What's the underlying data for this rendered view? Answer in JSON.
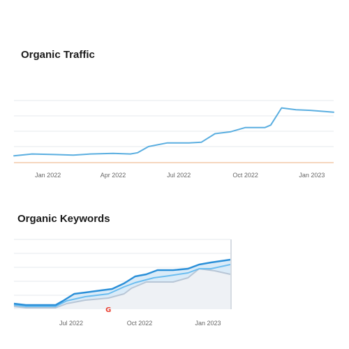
{
  "charts": {
    "traffic_title": "Organic Traffic",
    "keywords_title": "Organic Keywords"
  },
  "colors": {
    "traffic_line": "#5aaee0",
    "keywords_top": "#2a8fd8",
    "keywords_mid": "#6bbdf0",
    "keywords_low": "#b8c6d6",
    "keywords_fill": "#d3e8f7",
    "keywords_bg": "#eef1f5",
    "grid": "#e6e9ed",
    "baseline": "#f2c9a8",
    "google_icon": "#ea4335"
  },
  "icons": {
    "event_marker": "google-icon",
    "event_marker_glyph": "G"
  },
  "chart_data": [
    {
      "type": "line",
      "title": "Organic Traffic",
      "xlabel": "",
      "ylabel": "",
      "x_range": [
        "2021-11-15",
        "2023-01-31"
      ],
      "y_range": [
        0,
        100
      ],
      "grid": true,
      "legend": "none",
      "x_ticks": [
        {
          "date": "2022-01-01",
          "label": "Jan 2022"
        },
        {
          "date": "2022-04-01",
          "label": "Apr 2022"
        },
        {
          "date": "2022-07-01",
          "label": "Jul 2022"
        },
        {
          "date": "2022-10-01",
          "label": "Oct 2022"
        },
        {
          "date": "2023-01-01",
          "label": "Jan 2023"
        }
      ],
      "series": [
        {
          "points": [
            [
              "2021-11-15",
              10
            ],
            [
              "2021-12-10",
              13
            ],
            [
              "2022-01-10",
              12
            ],
            [
              "2022-02-05",
              11
            ],
            [
              "2022-03-01",
              13
            ],
            [
              "2022-04-01",
              14
            ],
            [
              "2022-04-25",
              13
            ],
            [
              "2022-05-05",
              15
            ],
            [
              "2022-05-20",
              25
            ],
            [
              "2022-06-15",
              31
            ],
            [
              "2022-07-15",
              31
            ],
            [
              "2022-08-01",
              32
            ],
            [
              "2022-08-20",
              46
            ],
            [
              "2022-09-10",
              49
            ],
            [
              "2022-10-01",
              56
            ],
            [
              "2022-10-28",
              56
            ],
            [
              "2022-11-05",
              60
            ],
            [
              "2022-11-20",
              88
            ],
            [
              "2022-12-10",
              85
            ],
            [
              "2022-12-30",
              84
            ],
            [
              "2023-01-31",
              81
            ]
          ]
        }
      ]
    },
    {
      "type": "area",
      "title": "Organic Keywords",
      "xlabel": "",
      "ylabel": "",
      "x_range": [
        "2022-04-15",
        "2023-01-31"
      ],
      "y_range": [
        0,
        100
      ],
      "grid": true,
      "legend": "none",
      "x_ticks": [
        {
          "date": "2022-07-01",
          "label": "Jul 2022"
        },
        {
          "date": "2022-10-01",
          "label": "Oct 2022"
        },
        {
          "date": "2023-01-01",
          "label": "Jan 2023"
        }
      ],
      "series": [
        {
          "points": [
            [
              "2022-04-15",
              8
            ],
            [
              "2022-05-01",
              6
            ],
            [
              "2022-05-31",
              6
            ],
            [
              "2022-06-10",
              6
            ],
            [
              "2022-06-20",
              12
            ],
            [
              "2022-07-05",
              22
            ],
            [
              "2022-07-20",
              24
            ],
            [
              "2022-08-10",
              27
            ],
            [
              "2022-08-25",
              29
            ],
            [
              "2022-09-10",
              37
            ],
            [
              "2022-09-25",
              47
            ],
            [
              "2022-10-10",
              50
            ],
            [
              "2022-10-25",
              56
            ],
            [
              "2022-11-15",
              56
            ],
            [
              "2022-12-05",
              58
            ],
            [
              "2022-12-20",
              64
            ],
            [
              "2023-01-05",
              67
            ],
            [
              "2023-01-31",
              71
            ]
          ]
        },
        {
          "points": [
            [
              "2022-04-15",
              6
            ],
            [
              "2022-05-01",
              4
            ],
            [
              "2022-06-10",
              4
            ],
            [
              "2022-06-25",
              12
            ],
            [
              "2022-07-20",
              18
            ],
            [
              "2022-08-20",
              22
            ],
            [
              "2022-09-10",
              32
            ],
            [
              "2022-09-25",
              38
            ],
            [
              "2022-10-20",
              45
            ],
            [
              "2022-11-10",
              48
            ],
            [
              "2022-12-05",
              52
            ],
            [
              "2022-12-20",
              58
            ],
            [
              "2023-01-05",
              58
            ],
            [
              "2023-01-31",
              64
            ]
          ]
        },
        {
          "points": [
            [
              "2022-04-15",
              4
            ],
            [
              "2022-05-01",
              2
            ],
            [
              "2022-06-10",
              2
            ],
            [
              "2022-06-25",
              8
            ],
            [
              "2022-07-20",
              13
            ],
            [
              "2022-08-20",
              16
            ],
            [
              "2022-09-10",
              22
            ],
            [
              "2022-09-20",
              30
            ],
            [
              "2022-10-10",
              39
            ],
            [
              "2022-11-15",
              39
            ],
            [
              "2022-12-05",
              45
            ],
            [
              "2022-12-20",
              58
            ],
            [
              "2023-01-10",
              55
            ],
            [
              "2023-01-31",
              50
            ]
          ]
        }
      ],
      "markers": [
        {
          "date": "2022-08-20",
          "icon": "google-icon"
        }
      ]
    }
  ]
}
